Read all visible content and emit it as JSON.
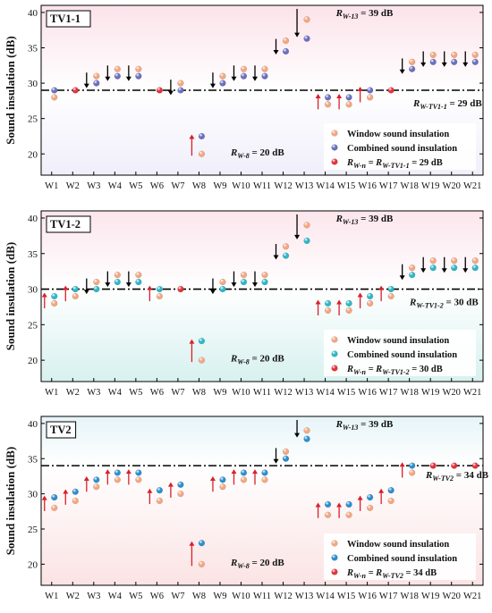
{
  "colors": {
    "window": "#f5a77f",
    "combined_tv1_1": "#6b6fbf",
    "combined_tv1_2": "#2bb8c8",
    "combined_tv2": "#2a8fd0",
    "equal": "#e8303a",
    "arrow": "#d8202a",
    "panel_top_tv1_1": "#fbe3ea",
    "panel_bottom_tv1_1": "#f0effa",
    "panel_top_tv1_2": "#fbe6ec",
    "panel_bottom_tv1_2": "#d7f1ef",
    "panel_top_tv2": "#e6f4f8",
    "panel_bottom_tv2": "#fbe3e4"
  },
  "chart_data": [
    {
      "type": "scatter",
      "panel_label": "TV1-1",
      "categories": [
        "W1",
        "W2",
        "W3",
        "W4",
        "W5",
        "W6",
        "W7",
        "W8",
        "W9",
        "W10",
        "W11",
        "W12",
        "W13",
        "W14",
        "W15",
        "W16",
        "W17",
        "W18",
        "W19",
        "W20",
        "W21"
      ],
      "ylabel": "Sound insulation (dB)",
      "ylim": [
        17,
        41
      ],
      "yticks": [
        20,
        25,
        30,
        35,
        40
      ],
      "reference": {
        "value": 29,
        "label": "R_W-TV1-1 = 29 dB",
        "label_main": "R",
        "label_sub": "W-TV1-1",
        "label_rest": " = 29 dB"
      },
      "series": [
        {
          "name": "Window sound insulation",
          "values": [
            28,
            29,
            31,
            32,
            32,
            29,
            30,
            20,
            31,
            32,
            32,
            36,
            39,
            27,
            27,
            28,
            29,
            33,
            34,
            34,
            34
          ]
        },
        {
          "name": "Combined sound insulation",
          "values": [
            29,
            29,
            30,
            31,
            31,
            29,
            29,
            22.5,
            30,
            31,
            31,
            34.5,
            36.3,
            28,
            28,
            29,
            29,
            32,
            33,
            33,
            33
          ]
        }
      ],
      "equal_points": [
        1,
        5,
        16
      ],
      "arrows": [
        {
          "i": 2,
          "dir": "down"
        },
        {
          "i": 3,
          "dir": "down"
        },
        {
          "i": 4,
          "dir": "down"
        },
        {
          "i": 6,
          "dir": "down"
        },
        {
          "i": 7,
          "dir": "up"
        },
        {
          "i": 8,
          "dir": "down"
        },
        {
          "i": 9,
          "dir": "down"
        },
        {
          "i": 10,
          "dir": "down"
        },
        {
          "i": 11,
          "dir": "down"
        },
        {
          "i": 12,
          "dir": "down"
        },
        {
          "i": 13,
          "dir": "up"
        },
        {
          "i": 14,
          "dir": "up"
        },
        {
          "i": 15,
          "dir": "up"
        },
        {
          "i": 17,
          "dir": "down"
        },
        {
          "i": 18,
          "dir": "down"
        },
        {
          "i": 19,
          "dir": "down"
        },
        {
          "i": 20,
          "dir": "down"
        }
      ],
      "annotations": [
        {
          "main": "R",
          "sub": "W-8",
          "rest": " = 20 dB",
          "x_index": 8,
          "y": 19.8
        },
        {
          "main": "R",
          "sub": "W-13",
          "rest": " = 39 dB",
          "x_index": 13,
          "y": 39.5
        }
      ],
      "legend": {
        "placement": "bottom-right",
        "window": "Window sound insulation",
        "combined": "Combined sound insulation",
        "equal_main": "R",
        "equal_sub": "W-n",
        "equal_mid": " = R",
        "equal_sub2": "W-TV1-1",
        "equal_rest": " = 29 dB"
      }
    },
    {
      "type": "scatter",
      "panel_label": "TV1-2",
      "categories": [
        "W1",
        "W2",
        "W3",
        "W4",
        "W5",
        "W6",
        "W7",
        "W8",
        "W9",
        "W10",
        "W11",
        "W12",
        "W13",
        "W14",
        "W15",
        "W16",
        "W17",
        "W18",
        "W19",
        "W20",
        "W21"
      ],
      "ylabel": "Sound insulation (dB)",
      "ylim": [
        17,
        41
      ],
      "yticks": [
        20,
        25,
        30,
        35,
        40
      ],
      "reference": {
        "value": 30,
        "label": "R_W-TV1-2 = 30 dB",
        "label_main": "R",
        "label_sub": "W-TV1-2",
        "label_rest": " = 30 dB"
      },
      "series": [
        {
          "name": "Window sound insulation",
          "values": [
            28,
            29,
            31,
            32,
            32,
            29,
            30,
            20,
            31,
            32,
            32,
            36,
            39,
            27,
            27,
            28,
            29,
            33,
            34,
            34,
            34
          ]
        },
        {
          "name": "Combined sound insulation",
          "values": [
            29,
            30,
            30,
            31,
            31,
            30,
            30,
            22.7,
            30,
            31,
            31,
            34.7,
            36.8,
            28,
            28,
            29,
            30,
            32,
            33,
            33,
            33
          ]
        }
      ],
      "equal_points": [
        6
      ],
      "arrows": [
        {
          "i": 0,
          "dir": "up"
        },
        {
          "i": 1,
          "dir": "up"
        },
        {
          "i": 2,
          "dir": "down"
        },
        {
          "i": 3,
          "dir": "down"
        },
        {
          "i": 4,
          "dir": "down"
        },
        {
          "i": 5,
          "dir": "up"
        },
        {
          "i": 7,
          "dir": "up"
        },
        {
          "i": 8,
          "dir": "down"
        },
        {
          "i": 9,
          "dir": "down"
        },
        {
          "i": 10,
          "dir": "down"
        },
        {
          "i": 11,
          "dir": "down"
        },
        {
          "i": 12,
          "dir": "down"
        },
        {
          "i": 13,
          "dir": "up"
        },
        {
          "i": 14,
          "dir": "up"
        },
        {
          "i": 15,
          "dir": "up"
        },
        {
          "i": 16,
          "dir": "up"
        },
        {
          "i": 17,
          "dir": "down"
        },
        {
          "i": 18,
          "dir": "down"
        },
        {
          "i": 19,
          "dir": "down"
        },
        {
          "i": 20,
          "dir": "down"
        }
      ],
      "annotations": [
        {
          "main": "R",
          "sub": "W-8",
          "rest": " = 20 dB",
          "x_index": 8,
          "y": 19.8
        },
        {
          "main": "R",
          "sub": "W-13",
          "rest": " = 39 dB",
          "x_index": 13,
          "y": 39.5
        }
      ],
      "legend": {
        "placement": "bottom-right",
        "window": "Window sound insulation",
        "combined": "Combined sound insulation",
        "equal_main": "R",
        "equal_sub": "W-n",
        "equal_mid": " = R",
        "equal_sub2": "W-TV1-2",
        "equal_rest": " = 30 dB"
      }
    },
    {
      "type": "scatter",
      "panel_label": "TV2",
      "categories": [
        "W1",
        "W2",
        "W3",
        "W4",
        "W5",
        "W6",
        "W7",
        "W8",
        "W9",
        "W10",
        "W11",
        "W12",
        "W13",
        "W14",
        "W15",
        "W16",
        "W17",
        "W18",
        "W19",
        "W20",
        "W21"
      ],
      "ylabel": "Sound insulation (dB)",
      "ylim": [
        17,
        41
      ],
      "yticks": [
        20,
        25,
        30,
        35,
        40
      ],
      "reference": {
        "value": 34,
        "label": "R_W-TV2 = 34 dB",
        "label_main": "R",
        "label_sub": "W-TV2",
        "label_rest": " = 34 dB"
      },
      "series": [
        {
          "name": "Window sound insulation",
          "values": [
            28,
            29,
            31,
            32,
            32,
            29,
            30,
            20,
            31,
            32,
            32,
            36,
            39,
            27,
            27,
            28,
            29,
            33,
            34,
            34,
            34
          ]
        },
        {
          "name": "Combined sound insulation",
          "values": [
            29.5,
            30.3,
            32,
            33,
            33,
            30.5,
            31.3,
            23,
            32,
            33,
            33,
            35,
            37.8,
            28.5,
            28.5,
            29.5,
            30.5,
            34,
            34,
            34,
            34
          ]
        }
      ],
      "equal_points": [
        18,
        19,
        20
      ],
      "arrows": [
        {
          "i": 0,
          "dir": "up"
        },
        {
          "i": 1,
          "dir": "up"
        },
        {
          "i": 2,
          "dir": "up"
        },
        {
          "i": 3,
          "dir": "up"
        },
        {
          "i": 4,
          "dir": "up"
        },
        {
          "i": 5,
          "dir": "up"
        },
        {
          "i": 6,
          "dir": "up"
        },
        {
          "i": 7,
          "dir": "up"
        },
        {
          "i": 8,
          "dir": "up"
        },
        {
          "i": 9,
          "dir": "up"
        },
        {
          "i": 10,
          "dir": "up"
        },
        {
          "i": 11,
          "dir": "down"
        },
        {
          "i": 12,
          "dir": "down"
        },
        {
          "i": 13,
          "dir": "up"
        },
        {
          "i": 14,
          "dir": "up"
        },
        {
          "i": 15,
          "dir": "up"
        },
        {
          "i": 16,
          "dir": "up"
        },
        {
          "i": 17,
          "dir": "up"
        }
      ],
      "annotations": [
        {
          "main": "R",
          "sub": "W-8",
          "rest": " = 20 dB",
          "x_index": 8,
          "y": 19.8
        },
        {
          "main": "R",
          "sub": "W-13",
          "rest": " = 39 dB",
          "x_index": 13,
          "y": 39.5
        }
      ],
      "legend": {
        "placement": "bottom-right",
        "window": "Window sound insulation",
        "combined": "Combined sound insulation",
        "equal_main": "R",
        "equal_sub": "W-n",
        "equal_mid": " = R",
        "equal_sub2": "W-TV2",
        "equal_rest": " = 34 dB"
      }
    }
  ]
}
